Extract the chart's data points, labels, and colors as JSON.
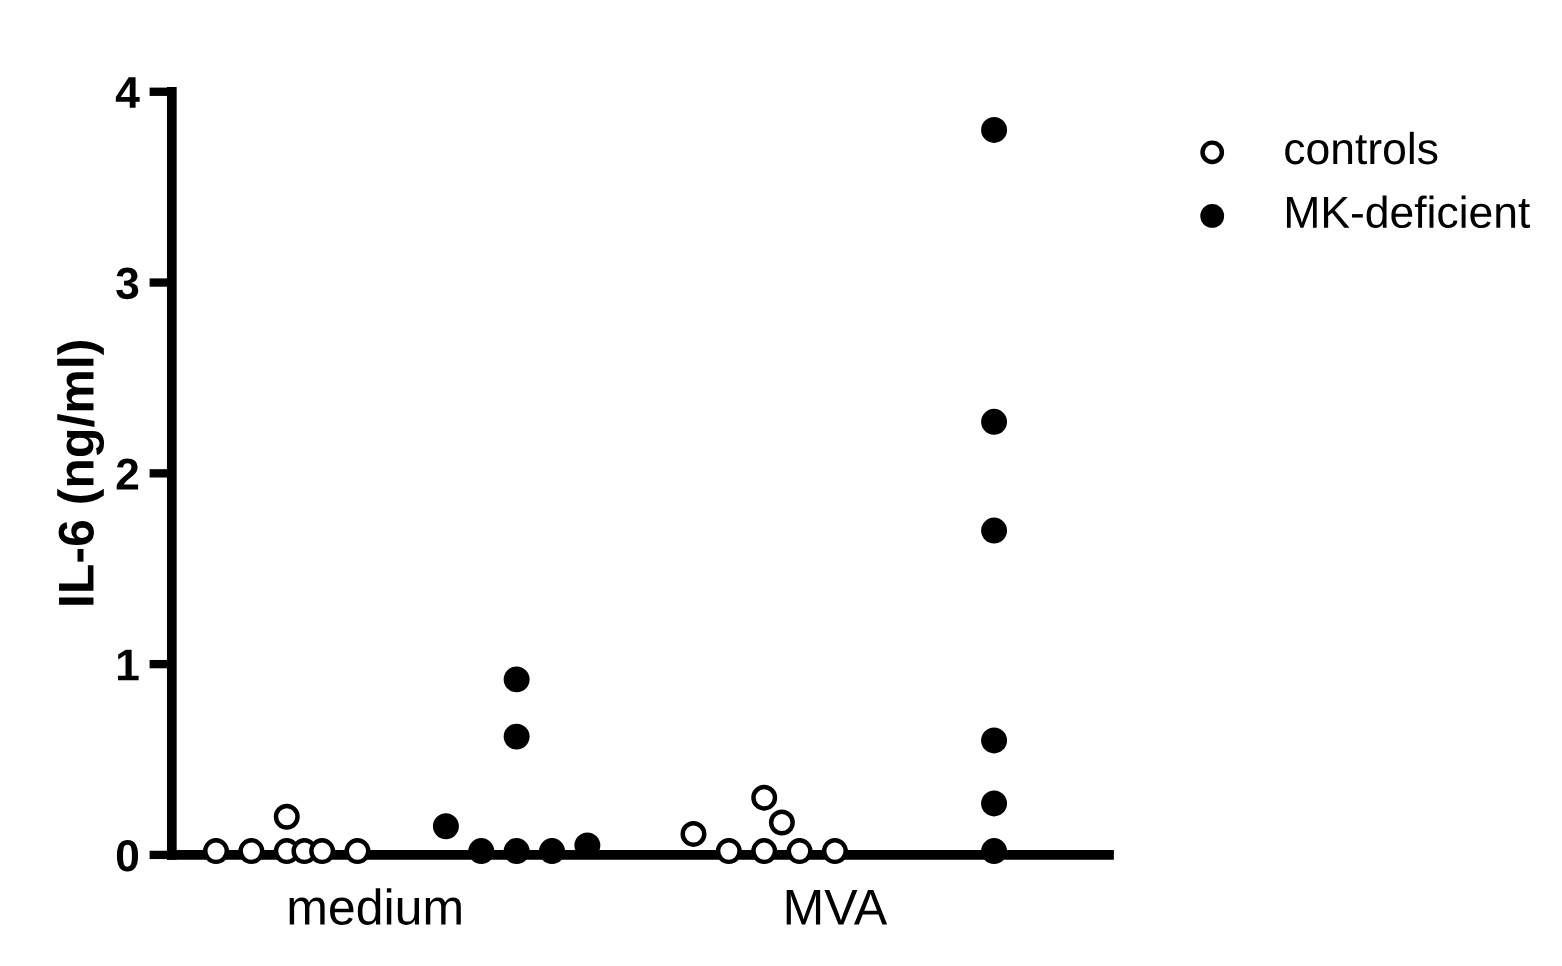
{
  "chart_data": {
    "type": "scatter",
    "ylabel": "IL-6 (ng/ml)",
    "ylim": [
      0,
      4
    ],
    "yticks": [
      0,
      1,
      2,
      3,
      4
    ],
    "marker": "circle",
    "legend": "top right",
    "grid": false,
    "categories": [
      null,
      null,
      null,
      null,
      null,
      null,
      null,
      null,
      null,
      "medium",
      null,
      null,
      null,
      null,
      null,
      null,
      null,
      null,
      null,
      null,
      null,
      null,
      null,
      null,
      null,
      null,
      null,
      null,
      null,
      null,
      null,
      null,
      null,
      null,
      null,
      "MVA",
      null,
      null,
      null,
      null,
      null,
      null,
      null,
      null,
      null
    ],
    "series": [
      {
        "name": "controls",
        "color": "#ffffff",
        "values": [
          0.02,
          null,
          0.02,
          null,
          0.02,
          0.02,
          0.02,
          null,
          0.02,
          null,
          null,
          null,
          null,
          null,
          null,
          null,
          null,
          null,
          null,
          null,
          null,
          null,
          null,
          null,
          null,
          null,
          null,
          0.11,
          null,
          0.02,
          null,
          0.02,
          null,
          0.02,
          null,
          0.02,
          null,
          null,
          null,
          null,
          null,
          null,
          null,
          null,
          null
        ]
      },
      {
        "color": "#ffffff",
        "values": [
          null,
          null,
          null,
          null,
          0.2,
          null,
          null,
          null,
          null,
          null,
          null,
          null,
          null,
          null,
          null,
          null,
          null,
          null,
          null,
          null,
          null,
          null,
          null,
          null,
          null,
          null,
          null,
          null,
          null,
          null,
          null,
          0.3,
          0.17,
          null,
          null,
          null,
          null,
          null,
          null,
          null,
          null,
          null,
          null,
          null,
          null
        ]
      },
      {
        "name": "MK-deficient",
        "color": "#000000",
        "values": [
          null,
          null,
          null,
          null,
          null,
          null,
          null,
          null,
          null,
          null,
          null,
          null,
          null,
          0.15,
          null,
          0.02,
          null,
          0.02,
          null,
          0.02,
          null,
          0.05,
          null,
          null,
          null,
          null,
          null,
          null,
          null,
          null,
          null,
          null,
          null,
          null,
          null,
          null,
          null,
          null,
          null,
          null,
          null,
          null,
          null,
          null,
          0.02
        ]
      },
      {
        "color": "#000000",
        "values": [
          null,
          null,
          null,
          null,
          null,
          null,
          null,
          null,
          null,
          null,
          null,
          null,
          null,
          null,
          null,
          null,
          null,
          0.62,
          null,
          null,
          null,
          null,
          null,
          null,
          null,
          null,
          null,
          null,
          null,
          null,
          null,
          null,
          null,
          null,
          null,
          null,
          null,
          null,
          null,
          null,
          null,
          null,
          null,
          null,
          0.27
        ]
      },
      {
        "color": "#000000",
        "values": [
          null,
          null,
          null,
          null,
          null,
          null,
          null,
          null,
          null,
          null,
          null,
          null,
          null,
          null,
          null,
          null,
          null,
          0.92,
          null,
          null,
          null,
          null,
          null,
          null,
          null,
          null,
          null,
          null,
          null,
          null,
          null,
          null,
          null,
          null,
          null,
          null,
          null,
          null,
          null,
          null,
          null,
          null,
          null,
          null,
          0.6
        ]
      },
      {
        "color": "#000000",
        "values": [
          null,
          null,
          null,
          null,
          null,
          null,
          null,
          null,
          null,
          null,
          null,
          null,
          null,
          null,
          null,
          null,
          null,
          null,
          null,
          null,
          null,
          null,
          null,
          null,
          null,
          null,
          null,
          null,
          null,
          null,
          null,
          null,
          null,
          null,
          null,
          null,
          null,
          null,
          null,
          null,
          null,
          null,
          null,
          null,
          1.7
        ]
      },
      {
        "color": "#000000",
        "values": [
          null,
          null,
          null,
          null,
          null,
          null,
          null,
          null,
          null,
          null,
          null,
          null,
          null,
          null,
          null,
          null,
          null,
          null,
          null,
          null,
          null,
          null,
          null,
          null,
          null,
          null,
          null,
          null,
          null,
          null,
          null,
          null,
          null,
          null,
          null,
          null,
          null,
          null,
          null,
          null,
          null,
          null,
          null,
          null,
          2.27
        ]
      },
      {
        "color": "#000000",
        "values": [
          null,
          null,
          null,
          null,
          null,
          null,
          null,
          null,
          null,
          null,
          null,
          null,
          null,
          null,
          null,
          null,
          null,
          null,
          null,
          null,
          null,
          null,
          null,
          null,
          null,
          null,
          null,
          null,
          null,
          null,
          null,
          null,
          null,
          null,
          null,
          null,
          null,
          null,
          null,
          null,
          null,
          null,
          null,
          null,
          3.8
        ]
      }
    ]
  }
}
